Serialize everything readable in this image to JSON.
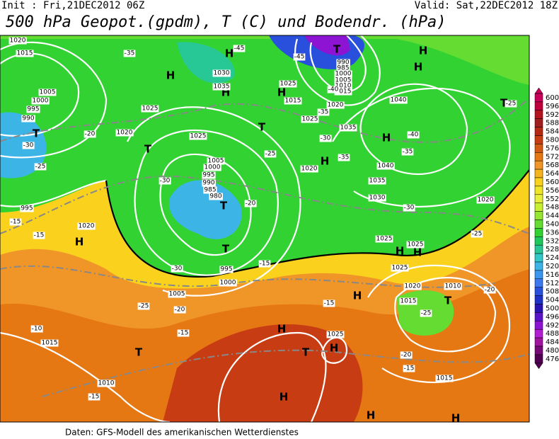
{
  "header": {
    "init": "Init : Fri,21DEC2012 06Z",
    "valid": "Valid: Sat,22DEC2012 18Z",
    "title": "500 hPa Geopot.(gpdm), T (C) und Bodendr. (hPa)"
  },
  "colorbar": {
    "levels": [
      600,
      596,
      592,
      588,
      584,
      580,
      576,
      572,
      568,
      564,
      560,
      556,
      552,
      548,
      544,
      540,
      536,
      532,
      528,
      524,
      520,
      516,
      512,
      508,
      504,
      500,
      496,
      492,
      488,
      484,
      480,
      476
    ],
    "colors": [
      "#c8005a",
      "#c0003c",
      "#b4141e",
      "#a01e1e",
      "#b42814",
      "#c83c14",
      "#d25a14",
      "#e67814",
      "#f09628",
      "#f5b41e",
      "#fad21e",
      "#f0e628",
      "#e6f03c",
      "#c8f032",
      "#96e632",
      "#64dc32",
      "#32d232",
      "#1ec85a",
      "#28c896",
      "#32c8c8",
      "#3cb4e6",
      "#3c96f0",
      "#3c78f0",
      "#2850dc",
      "#1e32c8",
      "#2814b4",
      "#5a14c8",
      "#8c14d2",
      "#b41ed2",
      "#a014a0",
      "#780a78",
      "#500050"
    ]
  },
  "map": {
    "centers": [
      "T",
      "H",
      "H",
      "H",
      "H",
      "H",
      "H",
      "T",
      "T",
      "T",
      "H",
      "H",
      "T",
      "T",
      "T",
      "H",
      "H",
      "H",
      "H",
      "T",
      "H",
      "T",
      "H",
      "T",
      "H",
      "H",
      "H"
    ],
    "isobar_labels": [
      "1020",
      "1015",
      "1005",
      "1000",
      "995",
      "990",
      "1030",
      "1035",
      "1025",
      "1020",
      "1025",
      "1005",
      "1000",
      "995",
      "990",
      "985",
      "980",
      "1040",
      "1035",
      "1040",
      "1035",
      "1030",
      "1020",
      "1020",
      "1025",
      "1025",
      "1025",
      "1020",
      "1015",
      "1010",
      "1025",
      "1015",
      "1010",
      "1015",
      "1005",
      "1000",
      "995",
      "990",
      "985",
      "1000",
      "1005",
      "1010",
      "1015",
      "1020",
      "1025",
      "1015",
      "995",
      "1020",
      "1025"
    ],
    "temperature_labels": [
      "-30",
      "-25",
      "-20",
      "-30",
      "-35",
      "-25",
      "-30",
      "-35",
      "-40",
      "-35",
      "-30",
      "-25",
      "-20",
      "-15",
      "-30",
      "-20",
      "-25",
      "-15",
      "-15",
      "-20",
      "-25",
      "-20",
      "-15",
      "-15",
      "-10",
      "-15",
      "-15",
      "-45",
      "-40",
      "-35",
      "-45",
      "-25"
    ]
  },
  "footer": "Daten: GFS-Modell des amerikanischen Wetterdienstes"
}
